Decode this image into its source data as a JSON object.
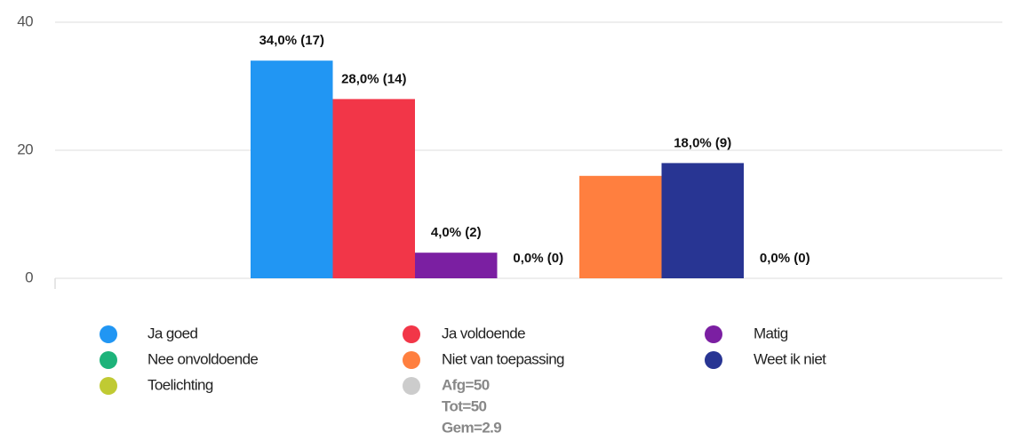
{
  "chart_data": {
    "type": "bar",
    "ylim": [
      0,
      40
    ],
    "yticks": [
      0,
      20,
      40
    ],
    "grid": true,
    "series": [
      {
        "name": "Ja goed",
        "color": "#2196f3",
        "values": [
          34
        ],
        "value_labels": [
          "34,0% (17)"
        ]
      },
      {
        "name": "Ja voldoende",
        "color": "#f23648",
        "values": [
          28
        ],
        "value_labels": [
          "28,0% (14)"
        ]
      },
      {
        "name": "Matig",
        "color": "#7b1fa2",
        "values": [
          4
        ],
        "value_labels": [
          "4,0% (2)"
        ]
      },
      {
        "name": "Nee onvoldoende",
        "color": "#1db37a",
        "values": [
          0
        ],
        "value_labels": [
          "0,0% (0)"
        ]
      },
      {
        "name": "Niet van toepassing",
        "color": "#ff7f3f",
        "values": [
          16
        ]
      },
      {
        "name": "Weet ik niet",
        "color": "#283593",
        "values": [
          18
        ],
        "value_labels": [
          "18,0% (9)"
        ]
      },
      {
        "name": "Toelichting",
        "color": "#c0ca33",
        "values": [
          0
        ],
        "value_labels": [
          "0,0% (0)"
        ]
      }
    ],
    "legend_extra": {
      "color": "#cccccc",
      "lines": [
        "Afg=50",
        "Tot=50",
        "Gem=2.9"
      ]
    }
  }
}
